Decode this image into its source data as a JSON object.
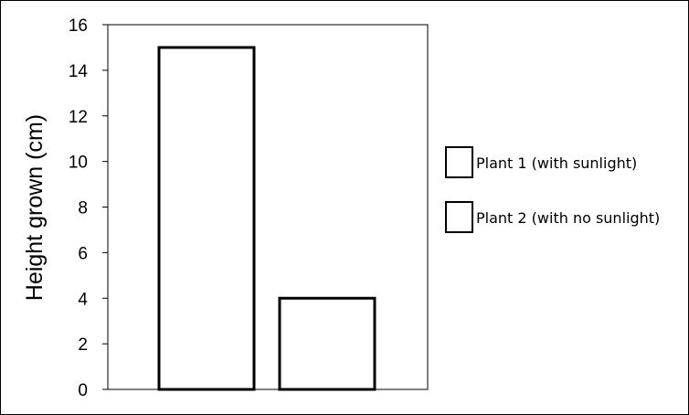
{
  "chart_data": {
    "type": "bar",
    "title": "",
    "xlabel": "",
    "ylabel": "Height grown (cm)",
    "ylim": [
      0,
      16
    ],
    "y_ticks": [
      0,
      2,
      4,
      6,
      8,
      10,
      12,
      14,
      16
    ],
    "grid": false,
    "legend_position": "right",
    "series": [
      {
        "name": "Plant 1 (with sunlight)",
        "values": [
          15
        ]
      },
      {
        "name": "Plant 2 (with no sunlight)",
        "values": [
          4
        ]
      }
    ],
    "bar_fill": "#ffffff",
    "bar_stroke": "#000000"
  }
}
